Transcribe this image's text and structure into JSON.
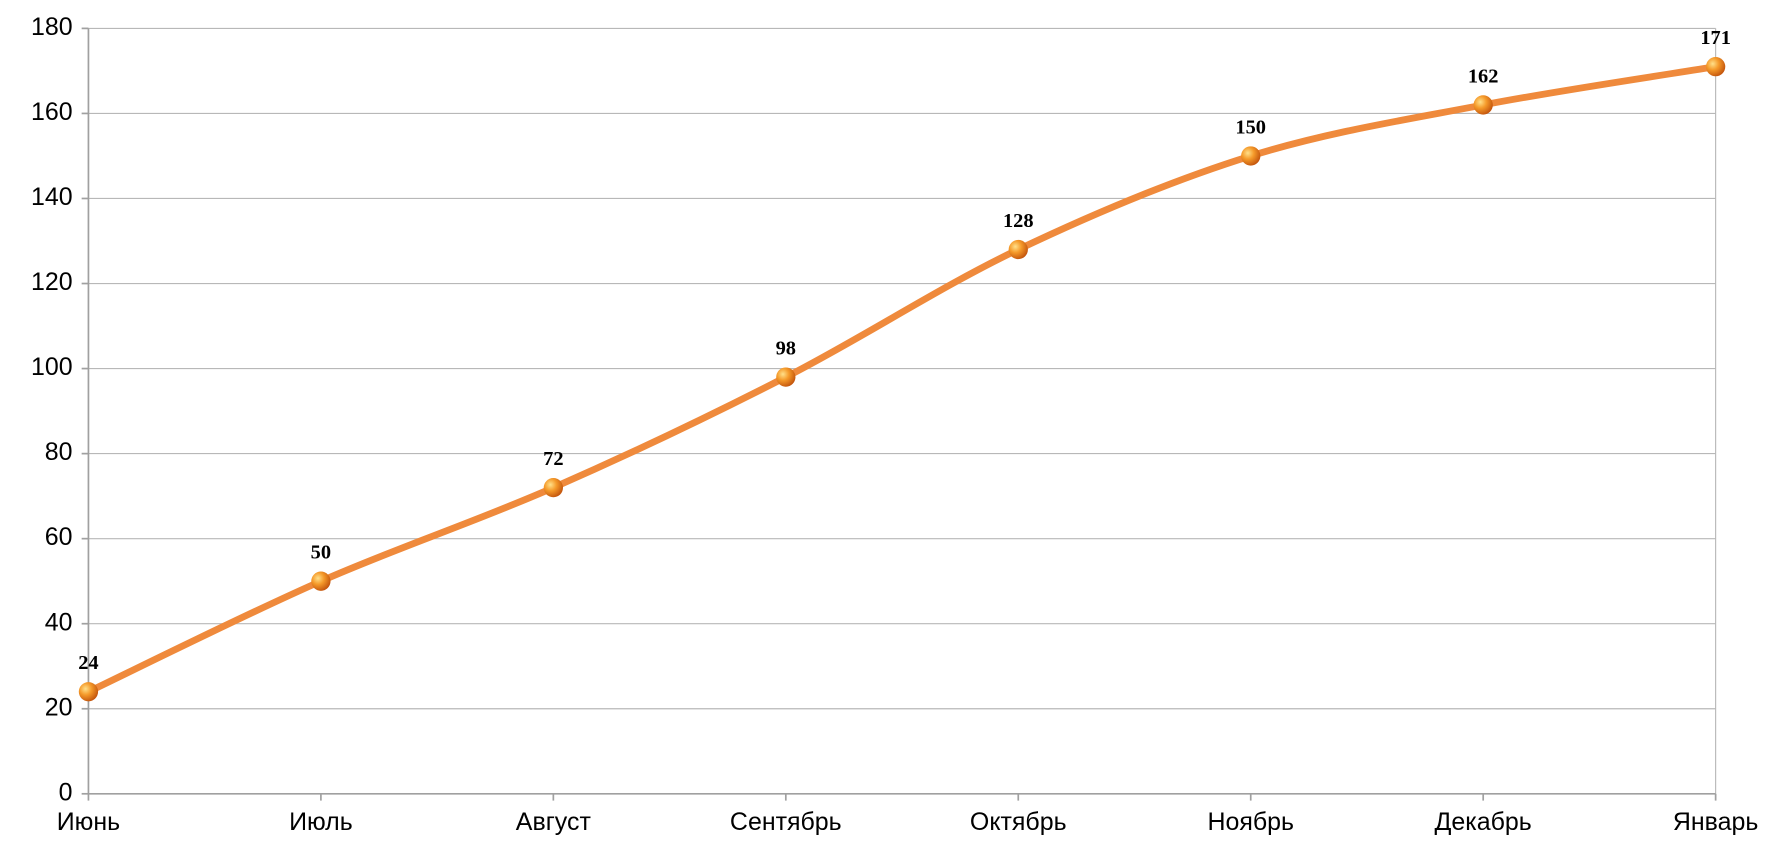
{
  "chart_data": {
    "type": "line",
    "categories": [
      "Июнь",
      "Июль",
      "Август",
      "Сентябрь",
      "Октябрь",
      "Ноябрь",
      "Декабрь",
      "Январь"
    ],
    "values": [
      24,
      50,
      72,
      98,
      128,
      150,
      162,
      171
    ],
    "color": "#ef8a3c",
    "smooth": true,
    "ylim": [
      0,
      180
    ],
    "yticks": [
      0,
      20,
      40,
      60,
      80,
      100,
      120,
      140,
      160,
      180
    ],
    "grid": true
  }
}
